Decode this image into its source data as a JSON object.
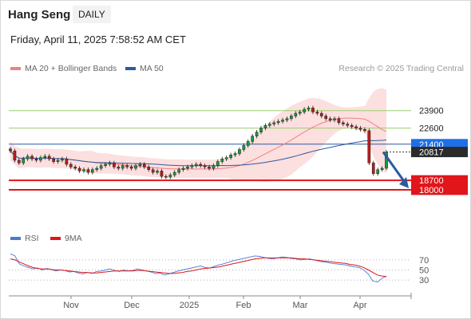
{
  "header": {
    "instrument": "Hang Seng",
    "timeframe": "DAILY",
    "datetime": "Friday, April 11, 2025 7:58:52 AM CET"
  },
  "legend_main": [
    {
      "label": "MA 20 + Bollinger Bands",
      "color": "#f08080"
    },
    {
      "label": "MA 50",
      "color": "#2c5aa0"
    }
  ],
  "legend_rsi": [
    {
      "label": "RSI",
      "color": "#4a7bd0"
    },
    {
      "label": "9MA",
      "color": "#e0161b"
    }
  ],
  "credit": "Research © 2025 Trading Central",
  "chart_data": [
    {
      "type": "candlestick",
      "name": "price",
      "x_labels": [
        "Nov",
        "Dec",
        "2025",
        "Feb",
        "Mar",
        "Apr"
      ],
      "ylim": [
        15500,
        26500
      ],
      "close_series": [
        20900,
        20200,
        20000,
        20300,
        20500,
        20300,
        20200,
        20400,
        20500,
        20300,
        20100,
        20200,
        20300,
        19900,
        19700,
        19600,
        19400,
        19500,
        19300,
        19500,
        19600,
        19800,
        19900,
        20000,
        19700,
        19600,
        19800,
        19700,
        19600,
        19800,
        19900,
        19700,
        19500,
        19300,
        19400,
        19000,
        18950,
        19100,
        19300,
        19500,
        19600,
        19700,
        19800,
        19900,
        19800,
        19700,
        19600,
        19800,
        20100,
        20300,
        20400,
        20600,
        20700,
        21000,
        21300,
        21600,
        22000,
        22300,
        22600,
        22800,
        22900,
        23000,
        23100,
        23200,
        23300,
        23500,
        23700,
        23800,
        24000,
        24100,
        23800,
        23700,
        23500,
        23300,
        23200,
        23300,
        23000,
        22900,
        22800,
        22700,
        22600,
        22500,
        22400,
        20000,
        19200,
        19500,
        19600,
        20800
      ],
      "levels": [
        {
          "label": "23900",
          "value": 23900,
          "kind": "resistance"
        },
        {
          "label": "22600",
          "value": 22600,
          "kind": "resistance"
        },
        {
          "label": "21400",
          "value": 21400,
          "kind": "pivot"
        },
        {
          "label": "20817",
          "value": 20817,
          "kind": "last"
        },
        {
          "label": "18700",
          "value": 18700,
          "kind": "support"
        },
        {
          "label": "18000",
          "value": 18000,
          "kind": "support"
        }
      ],
      "projection": {
        "from": 20817,
        "to": 18000
      }
    },
    {
      "type": "line",
      "name": "RSI",
      "ylim": [
        0,
        100
      ],
      "yticks": [
        "70",
        "50",
        "30"
      ],
      "yvalues": [
        70,
        50,
        30
      ],
      "series": [
        {
          "name": "RSI",
          "values": [
            82,
            78,
            62,
            58,
            55,
            52,
            54,
            50,
            53,
            51,
            48,
            50,
            49,
            46,
            47,
            44,
            42,
            45,
            43,
            47,
            48,
            50,
            52,
            49,
            47,
            50,
            48,
            49,
            52,
            50,
            48,
            46,
            43,
            44,
            40,
            42,
            45,
            48,
            50,
            52,
            54,
            56,
            58,
            55,
            54,
            57,
            60,
            62,
            65,
            68,
            70,
            72,
            74,
            76,
            78,
            77,
            75,
            73,
            72,
            74,
            76,
            75,
            73,
            72,
            70,
            71,
            72,
            70,
            68,
            66,
            65,
            63,
            62,
            61,
            60,
            58,
            56,
            55,
            50,
            42,
            28,
            26,
            33,
            38
          ]
        },
        {
          "name": "9MA",
          "values": [
            72,
            70,
            66,
            62,
            58,
            55,
            53,
            52,
            52,
            51,
            50,
            50,
            49,
            48,
            47,
            46,
            45,
            45,
            44,
            44,
            45,
            46,
            47,
            48,
            48,
            48,
            48,
            48,
            49,
            49,
            48,
            47,
            46,
            45,
            44,
            43,
            43,
            44,
            45,
            47,
            48,
            50,
            52,
            53,
            54,
            55,
            56,
            58,
            60,
            62,
            64,
            66,
            68,
            70,
            72,
            73,
            74,
            74,
            74,
            74,
            74,
            74,
            74,
            73,
            72,
            72,
            71,
            70,
            69,
            68,
            67,
            66,
            65,
            64,
            63,
            61,
            60,
            58,
            55,
            50,
            45,
            40,
            38,
            37
          ]
        }
      ]
    }
  ]
}
